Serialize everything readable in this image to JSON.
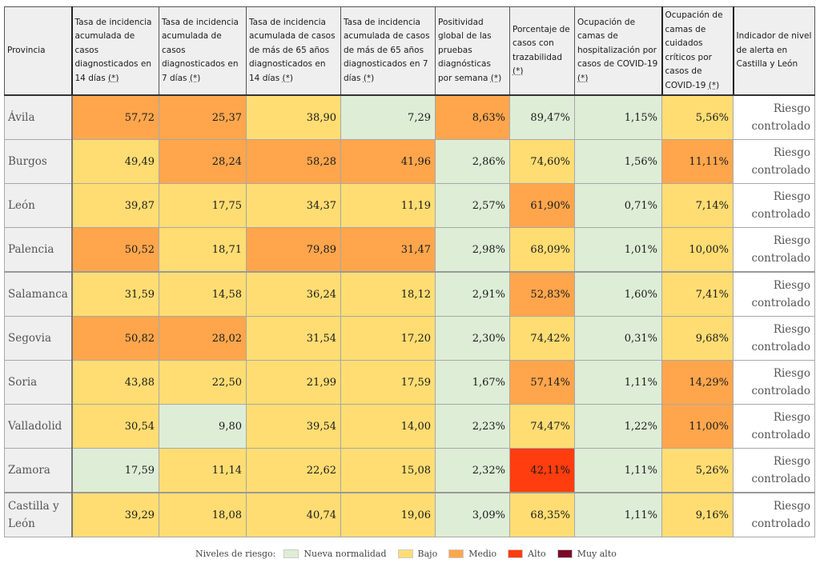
{
  "table": {
    "headers": [
      {
        "text": "Provincia",
        "note": ""
      },
      {
        "text": "Tasa de incidencia acumulada de casos diagnosticados en 14 días ",
        "note": "(*)"
      },
      {
        "text": "Tasa de incidencia acumulada de casos diagnosticados en 7 días ",
        "note": "(*)"
      },
      {
        "text": "Tasa de incidencia acumulada de casos de más de 65 años diagnosticados en 14 días ",
        "note": "(*)"
      },
      {
        "text": "Tasa de incidencia acumulada de casos de más de 65 años diagnosticados en 7 días ",
        "note": "(*)"
      },
      {
        "text": "Positividad global de las pruebas diagnósticas por semana ",
        "note": "(*)"
      },
      {
        "text": "Porcentaje de casos con trazabilidad ",
        "note": "(*)"
      },
      {
        "text": "Ocupación de camas de hospitalización por casos de COVID-19 ",
        "note": "(*)"
      },
      {
        "text": "Ocupación de camas de cuidados críticos por casos de COVID-19 ",
        "note": "(*)"
      },
      {
        "text": "Indicador de nivel de alerta en Castilla y León",
        "note": ""
      }
    ],
    "rows": [
      {
        "province": "Ávila",
        "cells": [
          {
            "value": "57,72",
            "level": "medio"
          },
          {
            "value": "25,37",
            "level": "medio"
          },
          {
            "value": "38,90",
            "level": "bajo"
          },
          {
            "value": "7,29",
            "level": "nueva"
          },
          {
            "value": "8,63%",
            "level": "medio"
          },
          {
            "value": "89,47%",
            "level": "nueva"
          },
          {
            "value": "1,15%",
            "level": "nueva"
          },
          {
            "value": "5,56%",
            "level": "bajo"
          }
        ],
        "alert": "Riesgo controlado"
      },
      {
        "province": "Burgos",
        "cells": [
          {
            "value": "49,49",
            "level": "bajo"
          },
          {
            "value": "28,24",
            "level": "medio"
          },
          {
            "value": "58,28",
            "level": "medio"
          },
          {
            "value": "41,96",
            "level": "medio"
          },
          {
            "value": "2,86%",
            "level": "nueva"
          },
          {
            "value": "74,60%",
            "level": "bajo"
          },
          {
            "value": "1,56%",
            "level": "nueva"
          },
          {
            "value": "11,11%",
            "level": "medio"
          }
        ],
        "alert": "Riesgo controlado"
      },
      {
        "province": "León",
        "cells": [
          {
            "value": "39,87",
            "level": "bajo"
          },
          {
            "value": "17,75",
            "level": "bajo"
          },
          {
            "value": "34,37",
            "level": "bajo"
          },
          {
            "value": "11,19",
            "level": "bajo"
          },
          {
            "value": "2,57%",
            "level": "nueva"
          },
          {
            "value": "61,90%",
            "level": "medio"
          },
          {
            "value": "0,71%",
            "level": "nueva"
          },
          {
            "value": "7,14%",
            "level": "bajo"
          }
        ],
        "alert": "Riesgo controlado"
      },
      {
        "province": "Palencia",
        "cells": [
          {
            "value": "50,52",
            "level": "medio"
          },
          {
            "value": "18,71",
            "level": "bajo"
          },
          {
            "value": "79,89",
            "level": "medio"
          },
          {
            "value": "31,47",
            "level": "medio"
          },
          {
            "value": "2,98%",
            "level": "nueva"
          },
          {
            "value": "68,09%",
            "level": "bajo"
          },
          {
            "value": "1,01%",
            "level": "nueva"
          },
          {
            "value": "10,00%",
            "level": "bajo"
          }
        ],
        "alert": "Riesgo controlado"
      },
      {
        "province": "Salamanca",
        "cells": [
          {
            "value": "31,59",
            "level": "bajo"
          },
          {
            "value": "14,58",
            "level": "bajo"
          },
          {
            "value": "36,24",
            "level": "bajo"
          },
          {
            "value": "18,12",
            "level": "bajo"
          },
          {
            "value": "2,91%",
            "level": "nueva"
          },
          {
            "value": "52,83%",
            "level": "medio"
          },
          {
            "value": "1,60%",
            "level": "nueva"
          },
          {
            "value": "7,41%",
            "level": "bajo"
          }
        ],
        "alert": "Riesgo controlado"
      },
      {
        "province": "Segovia",
        "cells": [
          {
            "value": "50,82",
            "level": "medio"
          },
          {
            "value": "28,02",
            "level": "medio"
          },
          {
            "value": "31,54",
            "level": "bajo"
          },
          {
            "value": "17,20",
            "level": "bajo"
          },
          {
            "value": "2,30%",
            "level": "nueva"
          },
          {
            "value": "74,42%",
            "level": "bajo"
          },
          {
            "value": "0,31%",
            "level": "nueva"
          },
          {
            "value": "9,68%",
            "level": "bajo"
          }
        ],
        "alert": "Riesgo controlado"
      },
      {
        "province": "Soria",
        "cells": [
          {
            "value": "43,88",
            "level": "bajo"
          },
          {
            "value": "22,50",
            "level": "bajo"
          },
          {
            "value": "21,99",
            "level": "bajo"
          },
          {
            "value": "17,59",
            "level": "bajo"
          },
          {
            "value": "1,67%",
            "level": "nueva"
          },
          {
            "value": "57,14%",
            "level": "medio"
          },
          {
            "value": "1,11%",
            "level": "nueva"
          },
          {
            "value": "14,29%",
            "level": "medio"
          }
        ],
        "alert": "Riesgo controlado"
      },
      {
        "province": "Valladolid",
        "cells": [
          {
            "value": "30,54",
            "level": "bajo"
          },
          {
            "value": "9,80",
            "level": "nueva"
          },
          {
            "value": "39,54",
            "level": "bajo"
          },
          {
            "value": "14,00",
            "level": "bajo"
          },
          {
            "value": "2,23%",
            "level": "nueva"
          },
          {
            "value": "74,47%",
            "level": "bajo"
          },
          {
            "value": "1,22%",
            "level": "nueva"
          },
          {
            "value": "11,00%",
            "level": "medio"
          }
        ],
        "alert": "Riesgo controlado"
      },
      {
        "province": "Zamora",
        "cells": [
          {
            "value": "17,59",
            "level": "nueva"
          },
          {
            "value": "11,14",
            "level": "bajo"
          },
          {
            "value": "22,62",
            "level": "bajo"
          },
          {
            "value": "15,08",
            "level": "bajo"
          },
          {
            "value": "2,32%",
            "level": "nueva"
          },
          {
            "value": "42,11%",
            "level": "alto"
          },
          {
            "value": "1,11%",
            "level": "nueva"
          },
          {
            "value": "5,26%",
            "level": "bajo"
          }
        ],
        "alert": "Riesgo controlado"
      },
      {
        "province": "Castilla y León",
        "cells": [
          {
            "value": "39,29",
            "level": "bajo"
          },
          {
            "value": "18,08",
            "level": "bajo"
          },
          {
            "value": "40,74",
            "level": "bajo"
          },
          {
            "value": "19,06",
            "level": "bajo"
          },
          {
            "value": "3,09%",
            "level": "nueva"
          },
          {
            "value": "68,35%",
            "level": "bajo"
          },
          {
            "value": "1,11%",
            "level": "nueva"
          },
          {
            "value": "9,16%",
            "level": "bajo"
          }
        ],
        "alert": "Riesgo controlado"
      }
    ]
  },
  "legend": {
    "title": "Niveles de riesgo:",
    "items": [
      {
        "key": "nueva",
        "label": "Nueva normalidad",
        "color": "#deedd6"
      },
      {
        "key": "bajo",
        "label": "Bajo",
        "color": "#ffdd73"
      },
      {
        "key": "medio",
        "label": "Medio",
        "color": "#ffa64d"
      },
      {
        "key": "alto",
        "label": "Alto",
        "color": "#ff3d0f"
      },
      {
        "key": "muyalto",
        "label": "Muy alto",
        "color": "#7a0a25"
      }
    ]
  }
}
